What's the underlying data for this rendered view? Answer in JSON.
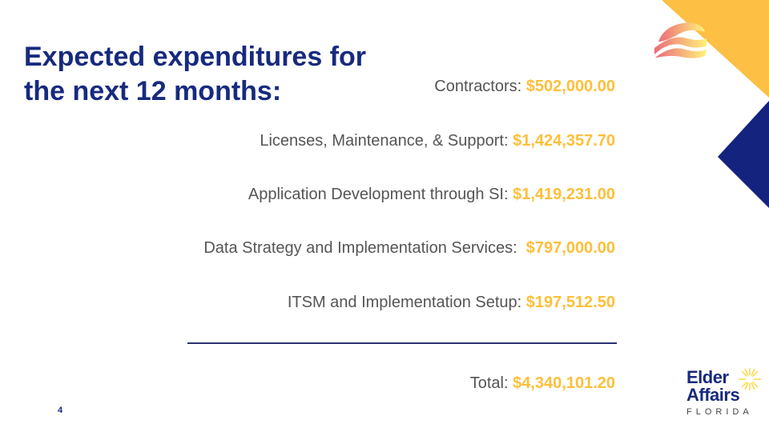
{
  "title": "Expected expenditures for the next 12 months:",
  "items": [
    {
      "label": "Contractors: ",
      "amount": "$502,000.00"
    },
    {
      "label": "Licenses, Maintenance, & Support: ",
      "amount": "$1,424,357.70"
    },
    {
      "label": "Application Development through SI: ",
      "amount": "$1,419,231.00"
    },
    {
      "label": "Data Strategy and Implementation Services:  ",
      "amount": "$797,000.00"
    },
    {
      "label": "ITSM and Implementation Setup: ",
      "amount": "$197,512.50"
    }
  ],
  "total": {
    "label": "Total: ",
    "amount": "$4,340,101.20"
  },
  "page_number": "4",
  "logo": {
    "line1": "Elder",
    "line2": "Affairs",
    "line3": "FLORIDA"
  },
  "colors": {
    "navy": "#172a7e",
    "gold": "#fdbf3a",
    "text": "#555555"
  }
}
